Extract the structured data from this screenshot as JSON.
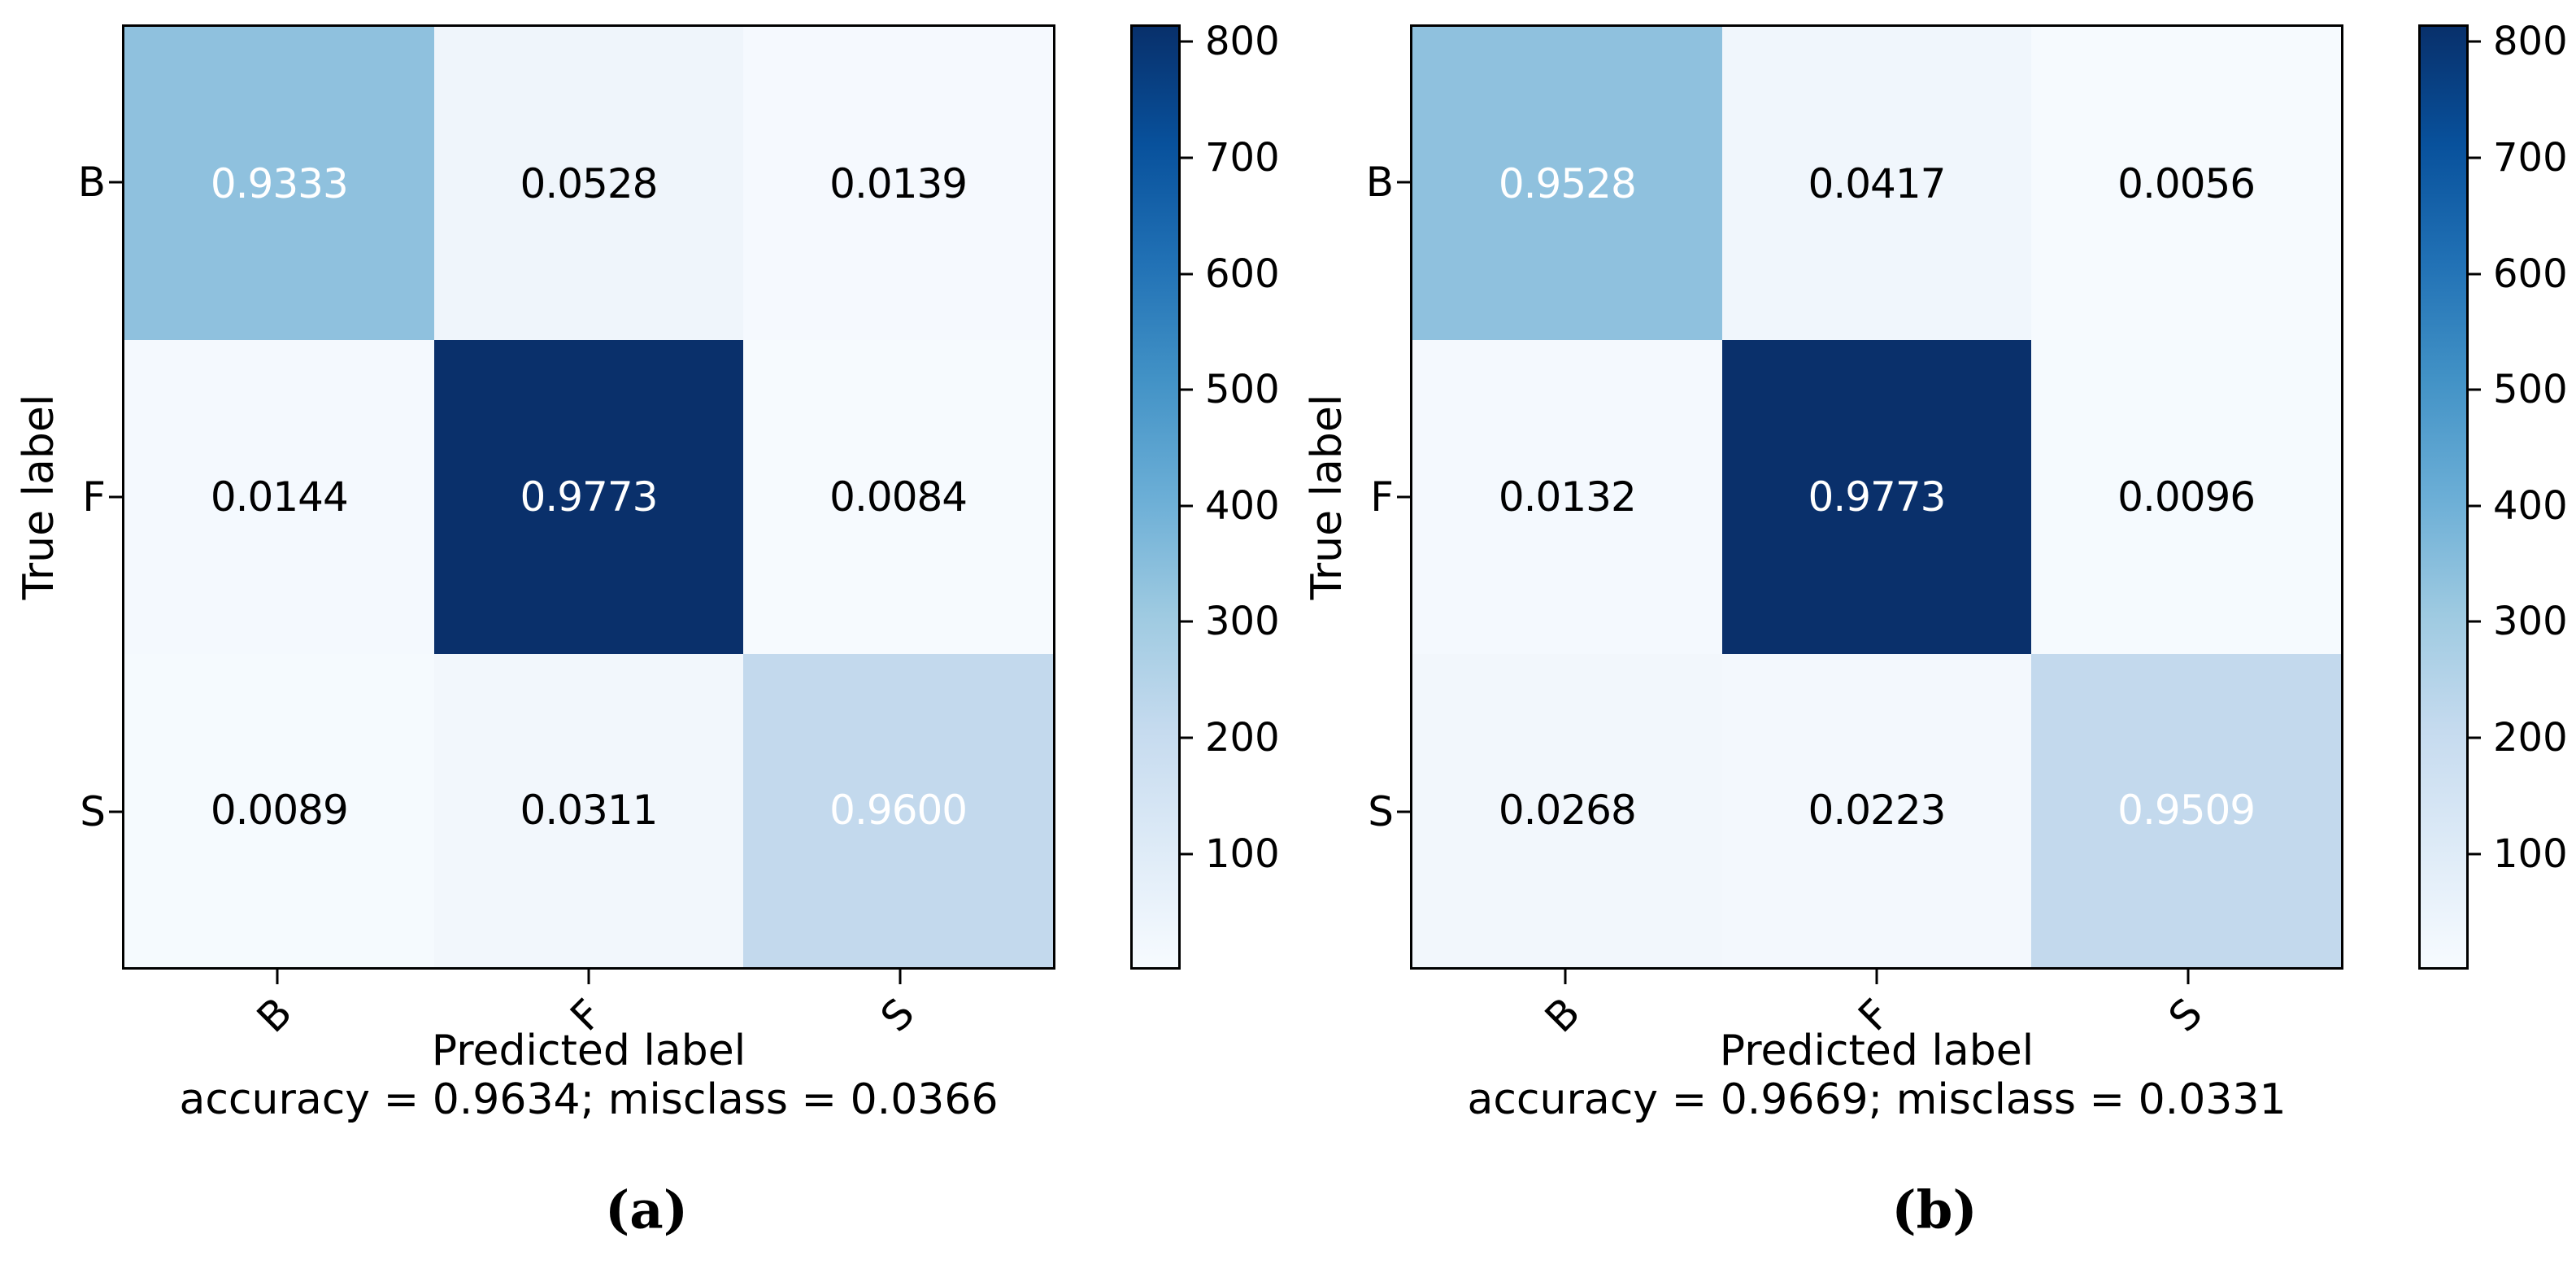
{
  "figure": {
    "background": "#ffffff",
    "colormap": {
      "name_hint": "blues-gradient",
      "min_color": "#f7fbff",
      "max_color": "#08306b"
    },
    "colorbar": {
      "ticks": [
        "800",
        "700",
        "600",
        "500",
        "400",
        "300",
        "200",
        "100"
      ],
      "value_range": [
        0,
        815
      ]
    },
    "panels": [
      {
        "caption": "(a)",
        "ylabel": "True label",
        "xlabel": "Predicted label",
        "stats": "accuracy = 0.9634; misclass = 0.0366",
        "row_labels": [
          "B",
          "F",
          "S"
        ],
        "col_labels": [
          "B",
          "F",
          "S"
        ],
        "cells": [
          [
            {
              "v": "0.9333",
              "bg": "#8fc1de",
              "fg": "#ffffff"
            },
            {
              "v": "0.0528",
              "bg": "#eff5fb",
              "fg": "#000000"
            },
            {
              "v": "0.0139",
              "bg": "#f5f9fe",
              "fg": "#000000"
            }
          ],
          [
            {
              "v": "0.0144",
              "bg": "#f4f9fe",
              "fg": "#000000"
            },
            {
              "v": "0.9773",
              "bg": "#0a306b",
              "fg": "#ffffff"
            },
            {
              "v": "0.0084",
              "bg": "#f6fafe",
              "fg": "#000000"
            }
          ],
          [
            {
              "v": "0.0089",
              "bg": "#f5fafe",
              "fg": "#000000"
            },
            {
              "v": "0.0311",
              "bg": "#f2f7fc",
              "fg": "#000000"
            },
            {
              "v": "0.9600",
              "bg": "#c3d9ed",
              "fg": "#ffffff"
            }
          ]
        ]
      },
      {
        "caption": "(b)",
        "ylabel": "True label",
        "xlabel": "Predicted label",
        "stats": "accuracy = 0.9669; misclass = 0.0331",
        "row_labels": [
          "B",
          "F",
          "S"
        ],
        "col_labels": [
          "B",
          "F",
          "S"
        ],
        "cells": [
          [
            {
              "v": "0.9528",
              "bg": "#8fc1de",
              "fg": "#ffffff"
            },
            {
              "v": "0.0417",
              "bg": "#f0f6fc",
              "fg": "#000000"
            },
            {
              "v": "0.0056",
              "bg": "#f6fafe",
              "fg": "#000000"
            }
          ],
          [
            {
              "v": "0.0132",
              "bg": "#f4f9fe",
              "fg": "#000000"
            },
            {
              "v": "0.9773",
              "bg": "#0a306b",
              "fg": "#ffffff"
            },
            {
              "v": "0.0096",
              "bg": "#f5fafe",
              "fg": "#000000"
            }
          ],
          [
            {
              "v": "0.0268",
              "bg": "#f2f7fc",
              "fg": "#000000"
            },
            {
              "v": "0.0223",
              "bg": "#f3f8fd",
              "fg": "#000000"
            },
            {
              "v": "0.9509",
              "bg": "#c3d9ed",
              "fg": "#ffffff"
            }
          ]
        ]
      }
    ]
  },
  "chart_data": [
    {
      "type": "heatmap",
      "title": "(a)",
      "x_categories": [
        "B",
        "F",
        "S"
      ],
      "y_categories": [
        "B",
        "F",
        "S"
      ],
      "values": [
        [
          0.9333,
          0.0528,
          0.0139
        ],
        [
          0.0144,
          0.9773,
          0.0084
        ],
        [
          0.0089,
          0.0311,
          0.96
        ]
      ],
      "xlabel": "Predicted label",
      "ylabel": "True label",
      "annotation": "accuracy = 0.9634; misclass = 0.0366",
      "colorbar_ticks": [
        100,
        200,
        300,
        400,
        500,
        600,
        700,
        800
      ],
      "colorbar_range": [
        0,
        815
      ],
      "colormap": "blues",
      "legend_position": "right"
    },
    {
      "type": "heatmap",
      "title": "(b)",
      "x_categories": [
        "B",
        "F",
        "S"
      ],
      "y_categories": [
        "B",
        "F",
        "S"
      ],
      "values": [
        [
          0.9528,
          0.0417,
          0.0056
        ],
        [
          0.0132,
          0.9773,
          0.0096
        ],
        [
          0.0268,
          0.0223,
          0.9509
        ]
      ],
      "xlabel": "Predicted label",
      "ylabel": "True label",
      "annotation": "accuracy = 0.9669; misclass = 0.0331",
      "colorbar_ticks": [
        100,
        200,
        300,
        400,
        500,
        600,
        700,
        800
      ],
      "colorbar_range": [
        0,
        815
      ],
      "colormap": "blues",
      "legend_position": "right"
    }
  ]
}
